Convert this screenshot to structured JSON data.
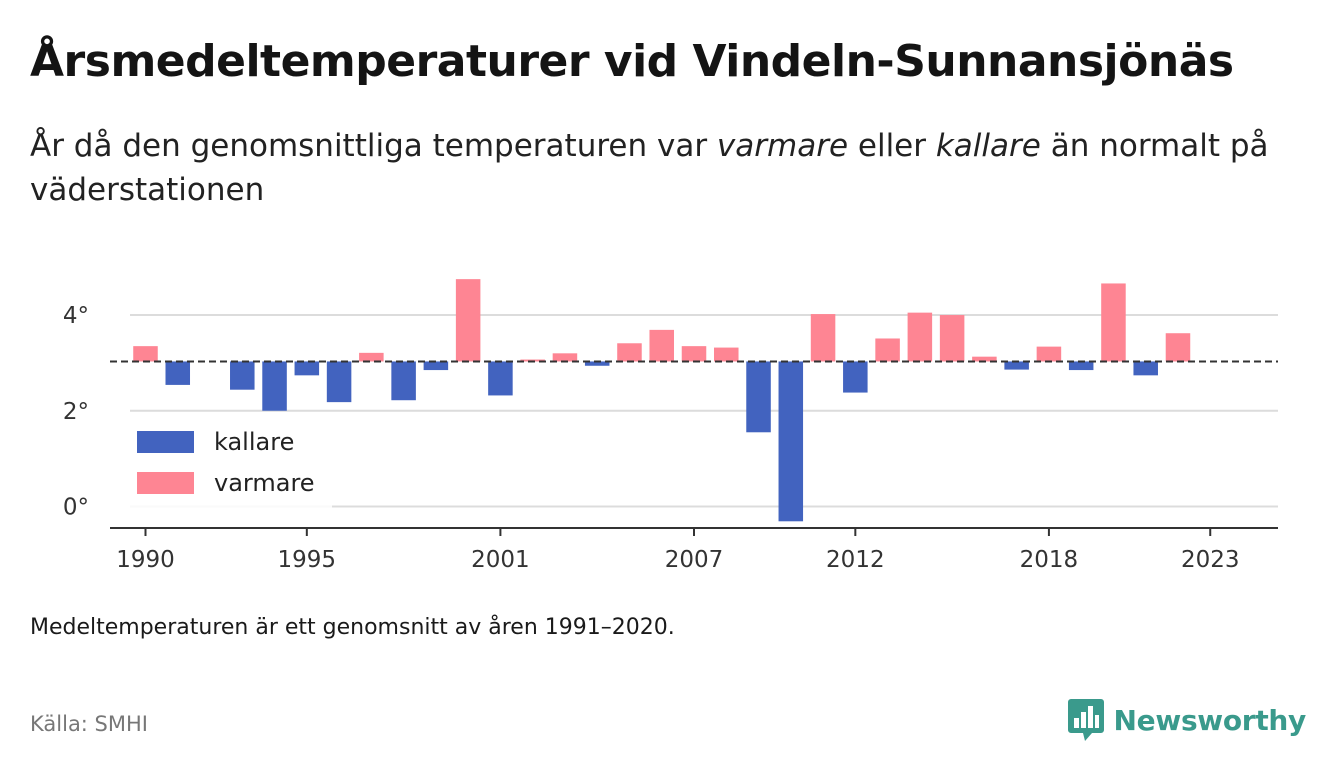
{
  "title": "Årsmedeltemperaturer vid Vindeln-Sunnansjönäs",
  "subtitle": {
    "part1": "År då den genomsnittliga temperaturen var ",
    "warmer_em": "varmare",
    "part2": " eller ",
    "colder_em": "kallare",
    "part3": " än normalt på väderstationen"
  },
  "note": "Medeltemperaturen är ett genomsnitt av åren 1991–2020.",
  "source": "Källa: SMHI",
  "brand": {
    "name": "Newsworthy",
    "icon": "newsworthy-logo-icon",
    "color": "#3a9a8c"
  },
  "chart_data": {
    "type": "bar",
    "baseline": 3.03,
    "baseline_style": "dashed",
    "years": [
      1990,
      1991,
      1992,
      1993,
      1994,
      1995,
      1996,
      1997,
      1998,
      1999,
      2000,
      2001,
      2002,
      2003,
      2004,
      2005,
      2006,
      2007,
      2008,
      2009,
      2010,
      2011,
      2012,
      2013,
      2014,
      2015,
      2016,
      2017,
      2018,
      2019,
      2020,
      2021,
      2022
    ],
    "values": [
      3.35,
      2.54,
      null,
      2.44,
      2.0,
      2.74,
      2.18,
      3.21,
      2.22,
      2.85,
      4.75,
      2.32,
      3.07,
      3.2,
      2.94,
      3.41,
      3.69,
      3.35,
      3.32,
      1.55,
      -0.31,
      4.02,
      2.38,
      3.51,
      4.05,
      4.0,
      3.13,
      2.86,
      3.34,
      2.85,
      4.66,
      2.74,
      3.62
    ],
    "yticks": [
      0,
      2,
      4
    ],
    "ytick_labels": [
      "0°",
      "2°",
      "4°"
    ],
    "xticks": [
      1990,
      1995,
      2001,
      2007,
      2012,
      2018,
      2023
    ],
    "ylim": [
      -0.45,
      5.15
    ],
    "xlim": [
      1988.9,
      2025.1
    ],
    "grid": "horizontal",
    "legend": {
      "position": "bottom-left",
      "entries": [
        {
          "label": "kallare",
          "color": "#4263bf"
        },
        {
          "label": "varmare",
          "color": "#fe8593"
        }
      ]
    },
    "colors": {
      "colder": "#4263bf",
      "warmer": "#fe8593",
      "grid": "#dcdcdc",
      "axis": "#333333",
      "baseline": "#333333"
    }
  }
}
